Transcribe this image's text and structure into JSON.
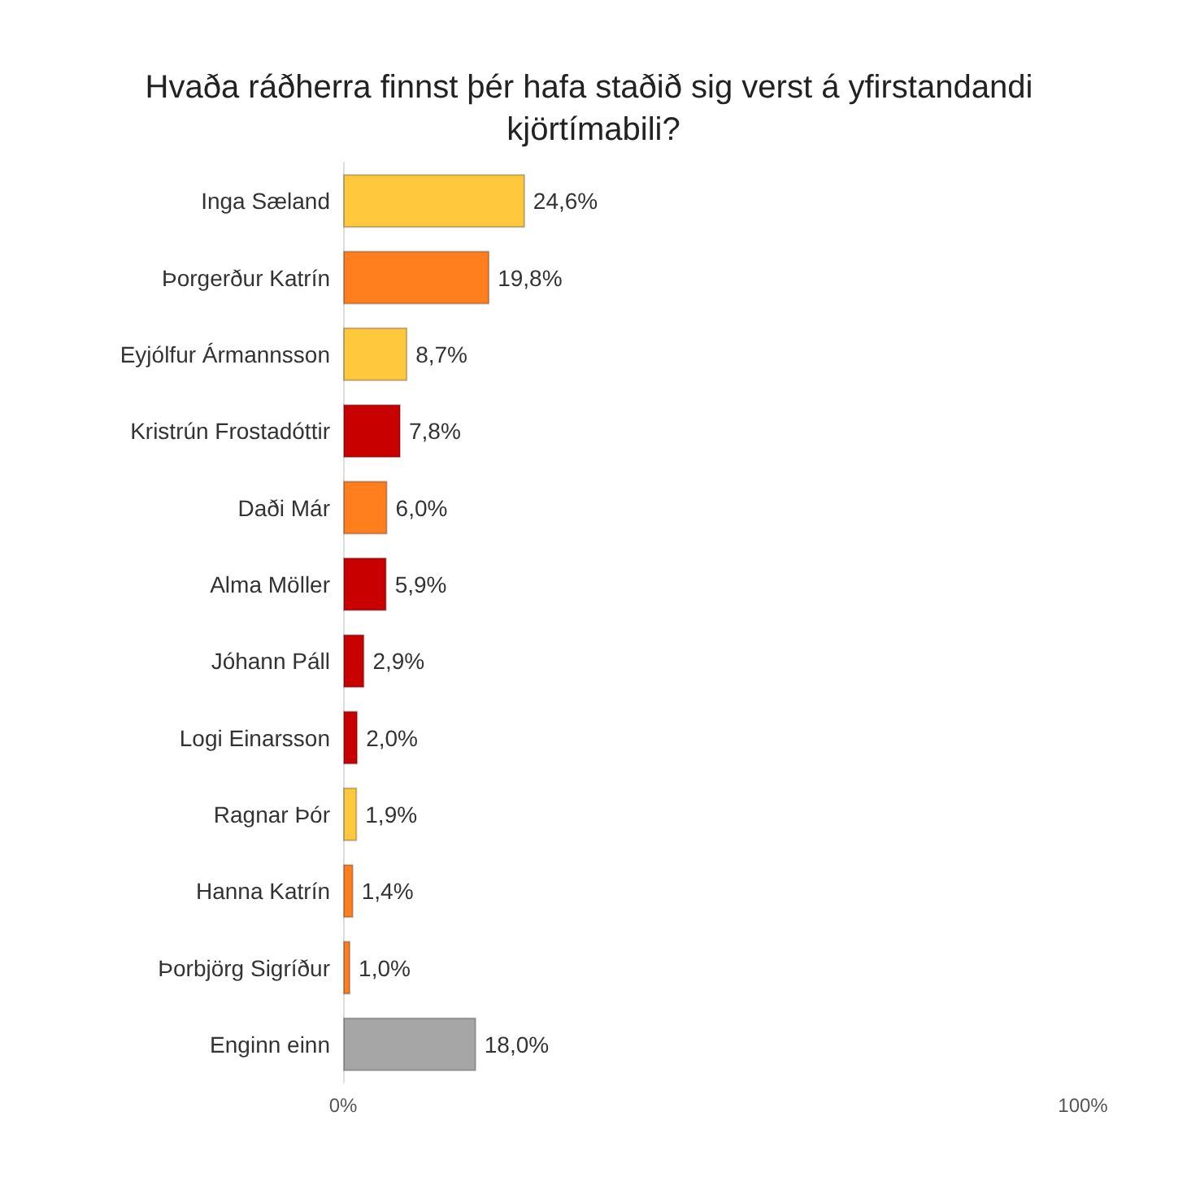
{
  "chart_data": {
    "type": "bar",
    "orientation": "horizontal",
    "title": "Hvaða ráðherra finnst þér hafa staðið sig verst á yfirstandandi kjörtímabili?",
    "categories": [
      "Inga Sæland",
      "Þorgerður Katrín",
      "Eyjólfur Ármannsson",
      "Kristrún Frostadóttir",
      "Daði Már",
      "Alma Möller",
      "Jóhann Páll",
      "Logi Einarsson",
      "Ragnar Þór",
      "Hanna Katrín",
      "Þorbjörg Sigríður",
      "Enginn einn"
    ],
    "values": [
      24.6,
      19.8,
      8.7,
      7.8,
      6.0,
      5.9,
      2.9,
      2.0,
      1.9,
      1.4,
      1.0,
      18.0
    ],
    "value_labels": [
      "24,6%",
      "19,8%",
      "8,7%",
      "7,8%",
      "6,0%",
      "5,9%",
      "2,9%",
      "2,0%",
      "1,9%",
      "1,4%",
      "1,0%",
      "18,0%"
    ],
    "colors": [
      "#ffc83d",
      "#ff7f1f",
      "#ffc83d",
      "#c80000",
      "#ff7f1f",
      "#c80000",
      "#c80000",
      "#c80000",
      "#ffc83d",
      "#ff7f1f",
      "#ff7f1f",
      "#a6a6a6"
    ],
    "xlim": [
      0,
      100
    ],
    "xticks": [
      {
        "value": 0,
        "label": "0%"
      },
      {
        "value": 100,
        "label": "100%"
      }
    ]
  }
}
